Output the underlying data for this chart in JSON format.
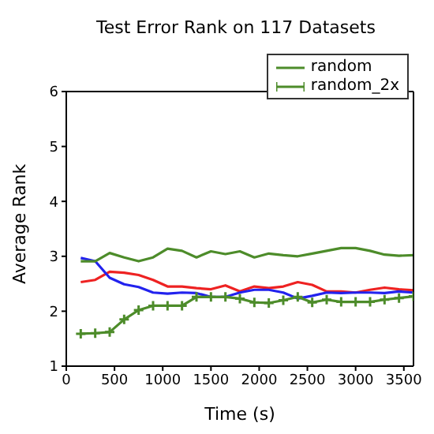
{
  "chart_data": {
    "type": "line",
    "title": "Test Error Rank on 117 Datasets",
    "xlabel": "Time (s)",
    "ylabel": "Average Rank",
    "x": [
      150,
      300,
      450,
      600,
      750,
      900,
      1050,
      1200,
      1350,
      1500,
      1650,
      1800,
      1950,
      2100,
      2250,
      2400,
      2550,
      2700,
      2850,
      3000,
      3150,
      3300,
      3450,
      3600
    ],
    "series": [
      {
        "color": "#ee2222",
        "values": [
          2.53,
          2.57,
          2.72,
          2.7,
          2.66,
          2.57,
          2.45,
          2.45,
          2.42,
          2.4,
          2.47,
          2.36,
          2.45,
          2.42,
          2.45,
          2.53,
          2.48,
          2.36,
          2.36,
          2.34,
          2.39,
          2.43,
          2.4,
          2.38
        ]
      },
      {
        "color": "#2222ee",
        "values": [
          2.97,
          2.91,
          2.61,
          2.49,
          2.44,
          2.34,
          2.32,
          2.34,
          2.33,
          2.26,
          2.26,
          2.34,
          2.39,
          2.39,
          2.34,
          2.23,
          2.28,
          2.34,
          2.33,
          2.34,
          2.34,
          2.33,
          2.36,
          2.34
        ]
      },
      {
        "name": "random",
        "color": "#4d8c2a",
        "values": [
          2.91,
          2.91,
          3.06,
          2.98,
          2.91,
          2.98,
          3.14,
          3.1,
          2.98,
          3.09,
          3.04,
          3.09,
          2.98,
          3.05,
          3.02,
          3.0,
          3.05,
          3.1,
          3.15,
          3.15,
          3.1,
          3.03,
          3.01,
          3.02
        ]
      },
      {
        "name": "random_2x",
        "color": "#4d8c2a",
        "marker": "cross",
        "values": [
          1.59,
          1.6,
          1.62,
          1.85,
          2.02,
          2.1,
          2.1,
          2.1,
          2.26,
          2.26,
          2.26,
          2.23,
          2.16,
          2.15,
          2.2,
          2.26,
          2.16,
          2.21,
          2.17,
          2.17,
          2.17,
          2.21,
          2.24,
          2.27
        ]
      }
    ],
    "xlim": [
      0,
      3600
    ],
    "xticks": [
      0,
      500,
      1000,
      1500,
      2000,
      2500,
      3000,
      3500
    ],
    "ylim": [
      1,
      6
    ],
    "yticks": [
      1,
      2,
      3,
      4,
      5,
      6
    ],
    "grid": false,
    "legend": "top right",
    "line_style": "solid"
  }
}
